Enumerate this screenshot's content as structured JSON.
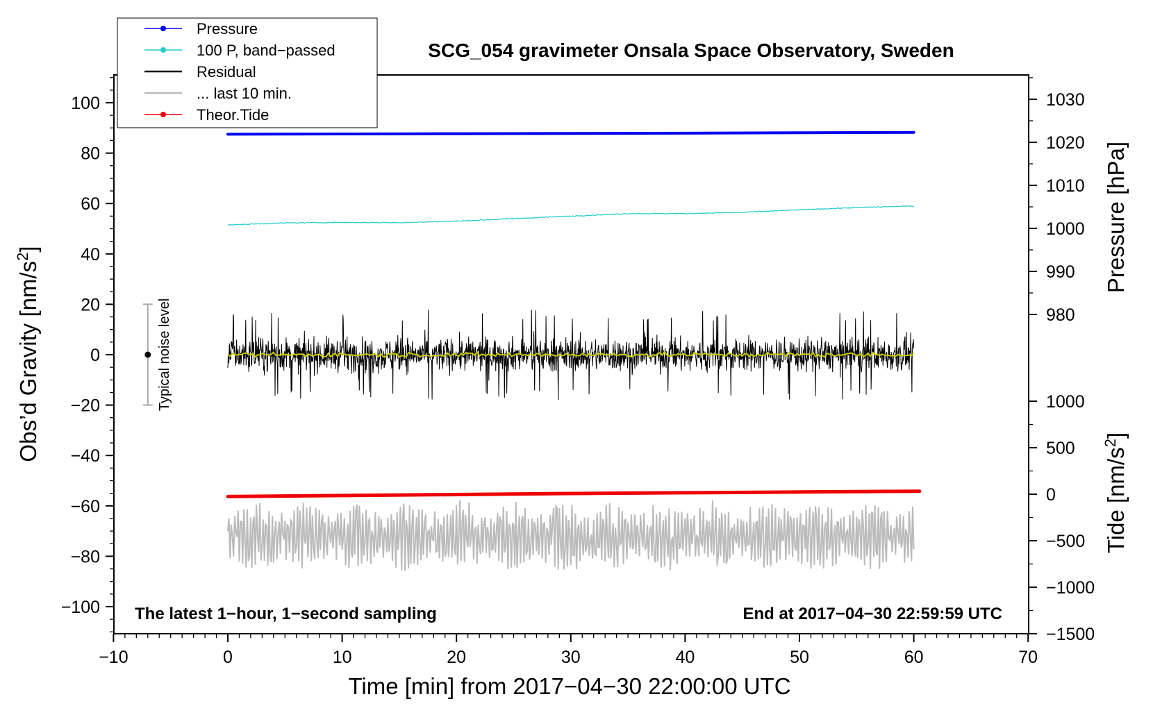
{
  "chart_data": {
    "type": "line",
    "title": "SCG_054 gravimeter Onsala Space Observatory, Sweden",
    "xlabel": "Time [min] from 2017−04−30 22:00:00 UTC",
    "xlim": [
      -10,
      70
    ],
    "x_ticks": [
      "−10",
      "0",
      "10",
      "20",
      "30",
      "40",
      "50",
      "60",
      "70"
    ],
    "left_axis": {
      "label": "Obs’d Gravity [nm/s",
      "label_sup": "2",
      "label_end": "]",
      "ylim": [
        -110,
        112
      ],
      "ticks": [
        "100",
        "80",
        "60",
        "40",
        "20",
        "0",
        "−20",
        "−40",
        "−60",
        "−80",
        "−100"
      ]
    },
    "pressure_axis": {
      "label": "Pressure [hPa]",
      "ticks": [
        "1030",
        "1020",
        "1010",
        "1000",
        "990",
        "980"
      ]
    },
    "tide_axis": {
      "label": "Tide [nm/s",
      "label_sup": "2",
      "label_end": "]",
      "ticks": [
        "1000",
        "500",
        "0",
        "−500",
        "−1000",
        "−1500"
      ]
    },
    "legend": [
      {
        "label": "Pressure",
        "color": "#0000ee",
        "marker": true
      },
      {
        "label": "100 P, band−passed",
        "color": "#22cccc",
        "marker": true
      },
      {
        "label": "Residual",
        "color": "#000000",
        "marker": false
      },
      {
        "label": "... last 10 min.",
        "color": "#bbbbbb",
        "marker": false
      },
      {
        "label": "Theor.Tide",
        "color": "#ee0000",
        "marker": true
      }
    ],
    "series": [
      {
        "name": "Pressure",
        "color": "#0000ee",
        "x": [
          0,
          10,
          20,
          30,
          40,
          50,
          60
        ],
        "y": [
          87.5,
          87.6,
          87.7,
          87.8,
          87.9,
          88.1,
          88.2
        ]
      },
      {
        "name": "100 P, band−passed",
        "color": "#22cccc",
        "x": [
          0,
          5,
          10,
          15,
          20,
          25,
          30,
          35,
          40,
          45,
          50,
          55,
          60
        ],
        "y": [
          51.5,
          52.3,
          52.5,
          52.4,
          53.0,
          54.0,
          55.0,
          56.0,
          56.0,
          56.5,
          57.5,
          58.4,
          59.0
        ]
      },
      {
        "name": "Residual",
        "color": "#000000",
        "x_range": [
          0,
          60
        ],
        "y_center": 0,
        "y_spread": 15
      },
      {
        "name": "Residual smoothed",
        "color": "#cccc00",
        "x_range": [
          0,
          60
        ],
        "y_center": 0,
        "y_spread": 1.5
      },
      {
        "name": "... last 10 min.",
        "color": "#bbbbbb",
        "x_range": [
          0,
          60
        ],
        "y_center": -72,
        "y_spread": 13
      },
      {
        "name": "Theor.Tide",
        "color": "#ee0000",
        "x": [
          0,
          10,
          20,
          30,
          40,
          50,
          60.5
        ],
        "y": [
          -56.3,
          -55.9,
          -55.5,
          -55.1,
          -54.8,
          -54.5,
          -54.2
        ]
      }
    ],
    "noise_bar": {
      "label": "Typical noise level",
      "x": -7,
      "center": 0,
      "half_range": 20
    },
    "annotations": {
      "bottom_left": "The latest 1−hour, 1−second sampling",
      "bottom_right": "End at 2017−04−30 22:59:59 UTC"
    }
  }
}
